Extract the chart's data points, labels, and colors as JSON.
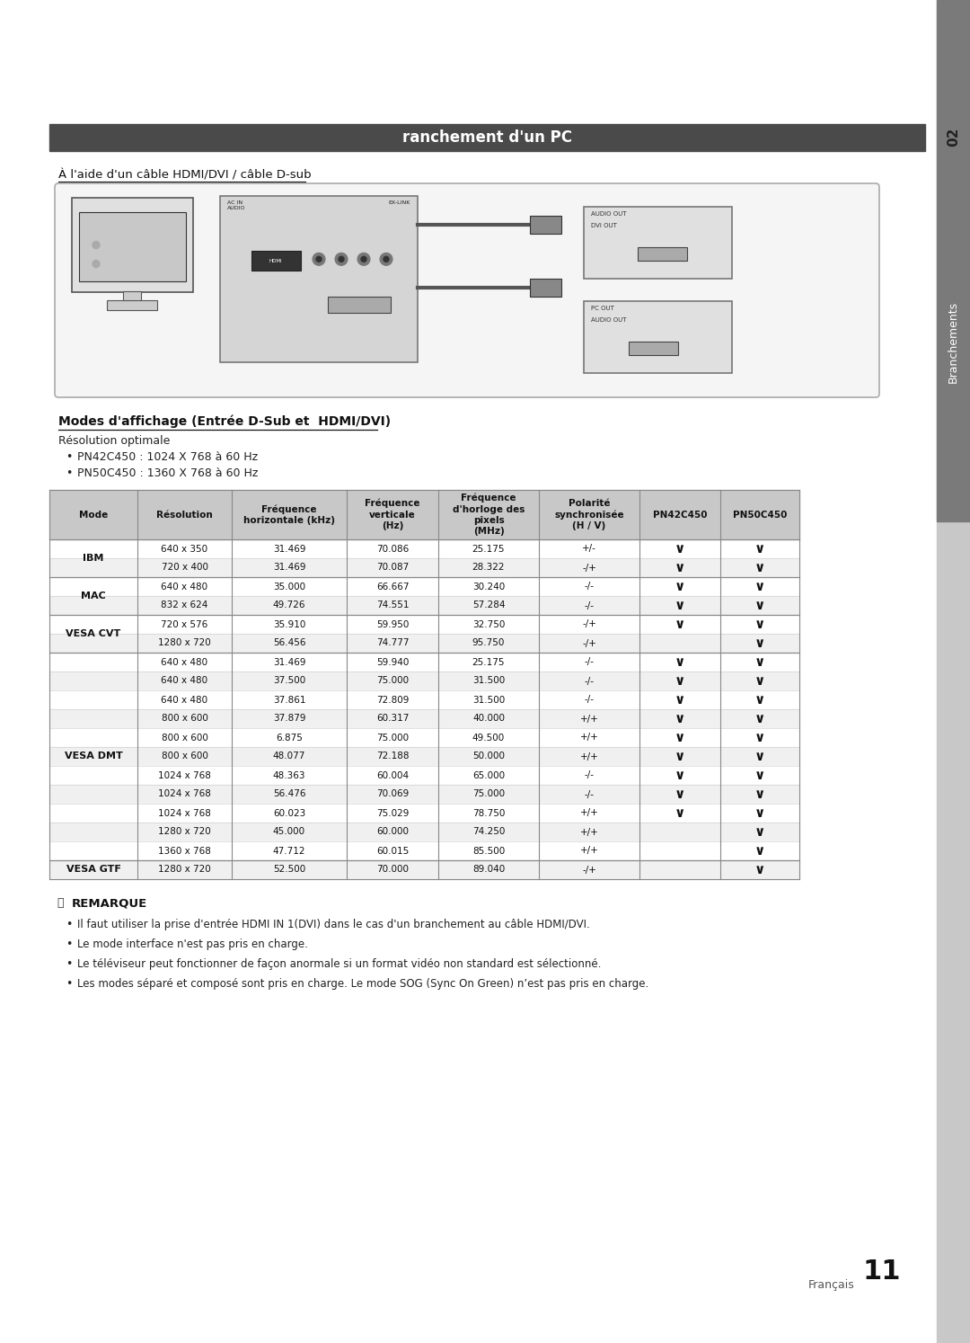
{
  "title": "ranchement d'un PC",
  "subtitle_underline": "À l'aide d'un câble HDMI/DVI / câble D-sub",
  "section_title": "Modes d'affichage (Entrée D-Sub et  HDMI/DVI)",
  "resolution_optimale": "Résolution optimale",
  "bullets_resolution": [
    "PN42C450 : 1024 X 768 à 60 Hz",
    "PN50C450 : 1360 X 768 à 60 Hz"
  ],
  "table_headers": [
    "Mode",
    "Résolution",
    "Fréquence\nhorizontale (kHz)",
    "Fréquence\nverticale\n(Hz)",
    "Fréquence\nd'horloge des\npixels\n(MHz)",
    "Polarité\nsynchronisée\n(H / V)",
    "PN42C450",
    "PN50C450"
  ],
  "table_data": [
    [
      "IBM",
      "640 x 350",
      "31.469",
      "70.086",
      "25.175",
      "+/-",
      true,
      true
    ],
    [
      "",
      "720 x 400",
      "31.469",
      "70.087",
      "28.322",
      "-/+",
      true,
      true
    ],
    [
      "MAC",
      "640 x 480",
      "35.000",
      "66.667",
      "30.240",
      "-/-",
      true,
      true
    ],
    [
      "",
      "832 x 624",
      "49.726",
      "74.551",
      "57.284",
      "-/-",
      true,
      true
    ],
    [
      "VESA CVT",
      "720 x 576",
      "35.910",
      "59.950",
      "32.750",
      "-/+",
      true,
      true
    ],
    [
      "",
      "1280 x 720",
      "56.456",
      "74.777",
      "95.750",
      "-/+",
      false,
      true
    ],
    [
      "VESA DMT",
      "640 x 480",
      "31.469",
      "59.940",
      "25.175",
      "-/-",
      true,
      true
    ],
    [
      "",
      "640 x 480",
      "37.500",
      "75.000",
      "31.500",
      "-/-",
      true,
      true
    ],
    [
      "",
      "640 x 480",
      "37.861",
      "72.809",
      "31.500",
      "-/-",
      true,
      true
    ],
    [
      "",
      "800 x 600",
      "37.879",
      "60.317",
      "40.000",
      "+/+",
      true,
      true
    ],
    [
      "",
      "800 x 600",
      "6.875",
      "75.000",
      "49.500",
      "+/+",
      true,
      true
    ],
    [
      "",
      "800 x 600",
      "48.077",
      "72.188",
      "50.000",
      "+/+",
      true,
      true
    ],
    [
      "",
      "1024 x 768",
      "48.363",
      "60.004",
      "65.000",
      "-/-",
      true,
      true
    ],
    [
      "",
      "1024 x 768",
      "56.476",
      "70.069",
      "75.000",
      "-/-",
      true,
      true
    ],
    [
      "",
      "1024 x 768",
      "60.023",
      "75.029",
      "78.750",
      "+/+",
      true,
      true
    ],
    [
      "",
      "1280 x 720",
      "45.000",
      "60.000",
      "74.250",
      "+/+",
      false,
      true
    ],
    [
      "",
      "1360 x 768",
      "47.712",
      "60.015",
      "85.500",
      "+/+",
      false,
      true
    ],
    [
      "VESA GTF",
      "1280 x 720",
      "52.500",
      "70.000",
      "89.040",
      "-/+",
      false,
      true
    ]
  ],
  "note_title": "REMARQUE",
  "notes": [
    "Il faut utiliser la prise d'entrée HDMI IN 1(DVI) dans le cas d'un branchement au câble HDMI/DVI.",
    "Le mode interface n'est pas pris en charge.",
    "Le téléviseur peut fonctionner de façon anormale si un format vidéo non standard est sélectionné.",
    "Les modes séparé et composé sont pris en charge. Le mode SOG (Sync On Green) n’est pas pris en charge."
  ],
  "page_label": "Français",
  "page_number": "11",
  "sidebar_text": "Branchements",
  "sidebar_number": "02",
  "bg_color": "#ffffff",
  "header_bg": "#4a4a4a",
  "header_fg": "#ffffff",
  "table_header_bg": "#c8c8c8",
  "table_row_bg1": "#ffffff",
  "table_row_bg2": "#f0f0f0",
  "table_border": "#888888",
  "sidebar_bg": "#c8c8c8",
  "sidebar_dark": "#7a7a7a"
}
